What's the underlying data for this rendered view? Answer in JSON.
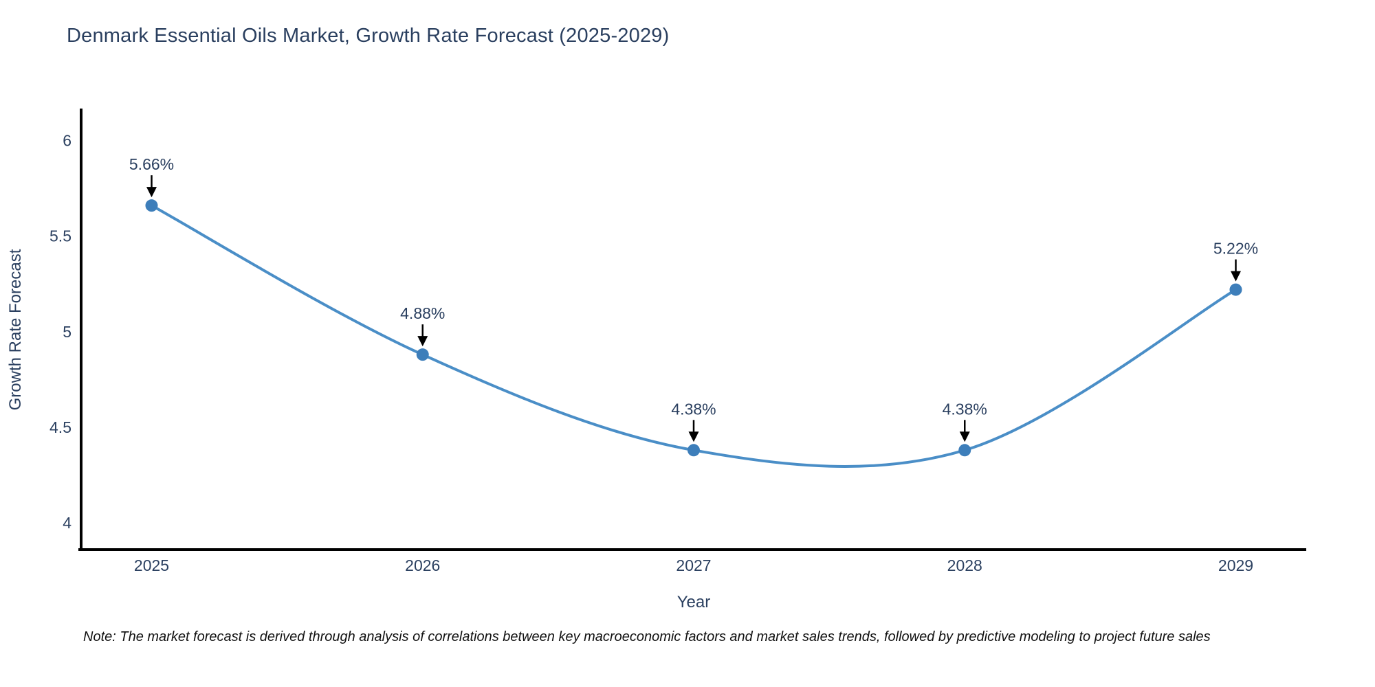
{
  "header": {
    "title": "Denmark Essential Oils Market, Growth Rate Forecast (2025-2029)"
  },
  "footnote": {
    "text": "Note: The market forecast is derived through analysis of correlations between key macroeconomic factors and market sales trends, followed by predictive modeling to project future sales"
  },
  "chart_data": {
    "type": "line",
    "title": "Denmark Essential Oils Market, Growth Rate Forecast (2025-2029)",
    "xlabel": "Year",
    "ylabel": "Growth Rate Forecast",
    "x": [
      2025,
      2026,
      2027,
      2028,
      2029
    ],
    "xtick_labels": [
      "2025",
      "2026",
      "2027",
      "2028",
      "2029"
    ],
    "series": [
      {
        "name": "Growth Rate Forecast",
        "values": [
          5.66,
          4.88,
          4.38,
          4.38,
          5.22
        ]
      }
    ],
    "point_labels": [
      "5.66%",
      "4.88%",
      "4.38%",
      "4.38%",
      "5.22%"
    ],
    "yticks": [
      4,
      4.5,
      5,
      5.5,
      6
    ],
    "ytick_labels": [
      "4",
      "4.5",
      "5",
      "5.5",
      "6"
    ],
    "xlim": [
      2024.74,
      2029.26
    ],
    "ylim": [
      3.86,
      6.16
    ],
    "grid": false,
    "legend": false,
    "line_shape": "spline",
    "marker_size": 9,
    "colors": {
      "line": "#4a8ec7",
      "marker": "#3d7eba",
      "axis": "#000000",
      "arrow": "#000000",
      "text": "#2a3f5f",
      "note": "#111111"
    }
  }
}
